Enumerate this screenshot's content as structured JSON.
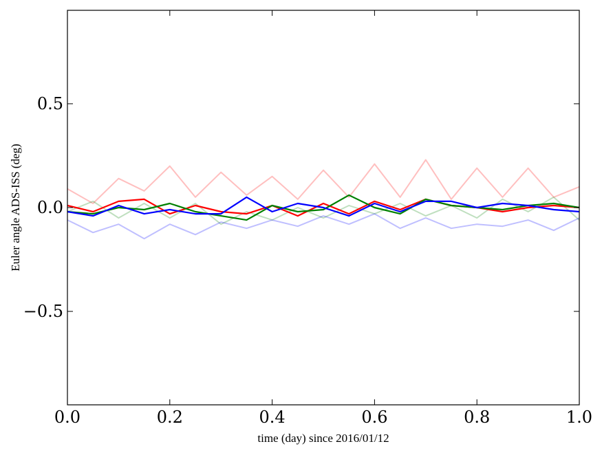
{
  "chart_data": {
    "type": "line",
    "xlabel": "time (day) since 2016/01/12",
    "ylabel": "Euler angle ADS-ISS (deg)",
    "xlim": [
      0.0,
      1.0
    ],
    "ylim": [
      -0.95,
      0.95
    ],
    "xticks": [
      "0.0",
      "0.2",
      "0.4",
      "0.6",
      "0.8",
      "1.0"
    ],
    "yticks": [
      "−0.5",
      "0.0",
      "0.5"
    ],
    "ytick_values": [
      -0.5,
      0.0,
      0.5
    ],
    "grid": false,
    "legend": "none",
    "x": [
      0.0,
      0.05,
      0.1,
      0.15,
      0.2,
      0.25,
      0.3,
      0.35,
      0.4,
      0.45,
      0.5,
      0.55,
      0.6,
      0.65,
      0.7,
      0.75,
      0.8,
      0.85,
      0.9,
      0.95,
      1.0
    ],
    "series": [
      {
        "color": "#ff0000",
        "alpha": 0.25,
        "values": [
          0.09,
          0.02,
          0.14,
          0.08,
          0.2,
          0.05,
          0.17,
          0.06,
          0.15,
          0.04,
          0.18,
          0.05,
          0.21,
          0.05,
          0.23,
          0.04,
          0.19,
          0.05,
          0.19,
          0.05,
          0.1
        ]
      },
      {
        "color": "#008000",
        "alpha": 0.25,
        "values": [
          -0.02,
          0.03,
          -0.05,
          0.02,
          -0.05,
          0.02,
          -0.08,
          -0.02,
          -0.06,
          0.0,
          -0.05,
          0.01,
          -0.03,
          0.02,
          -0.04,
          0.01,
          -0.05,
          0.04,
          -0.02,
          0.05,
          -0.06
        ]
      },
      {
        "color": "#0000ff",
        "alpha": 0.25,
        "values": [
          -0.06,
          -0.12,
          -0.08,
          -0.15,
          -0.08,
          -0.13,
          -0.07,
          -0.1,
          -0.06,
          -0.09,
          -0.04,
          -0.08,
          -0.03,
          -0.1,
          -0.05,
          -0.1,
          -0.08,
          -0.09,
          -0.06,
          -0.11,
          -0.05
        ]
      },
      {
        "color": "#ff0000",
        "alpha": 1.0,
        "values": [
          0.01,
          -0.02,
          0.03,
          0.04,
          -0.03,
          0.01,
          -0.02,
          -0.03,
          0.01,
          -0.04,
          0.02,
          -0.03,
          0.03,
          -0.01,
          0.04,
          0.01,
          0.0,
          -0.02,
          0.0,
          0.01,
          0.0
        ]
      },
      {
        "color": "#008000",
        "alpha": 1.0,
        "values": [
          -0.02,
          -0.03,
          0.0,
          -0.01,
          0.02,
          -0.02,
          -0.04,
          -0.06,
          0.01,
          -0.02,
          -0.01,
          0.06,
          0.0,
          -0.03,
          0.04,
          0.01,
          0.0,
          -0.01,
          0.01,
          0.02,
          0.0
        ]
      },
      {
        "color": "#0000ff",
        "alpha": 1.0,
        "values": [
          -0.02,
          -0.04,
          0.01,
          -0.03,
          -0.01,
          -0.03,
          -0.03,
          0.05,
          -0.02,
          0.02,
          0.0,
          -0.04,
          0.02,
          -0.02,
          0.03,
          0.03,
          0.0,
          0.02,
          0.01,
          -0.01,
          -0.02
        ]
      }
    ]
  }
}
